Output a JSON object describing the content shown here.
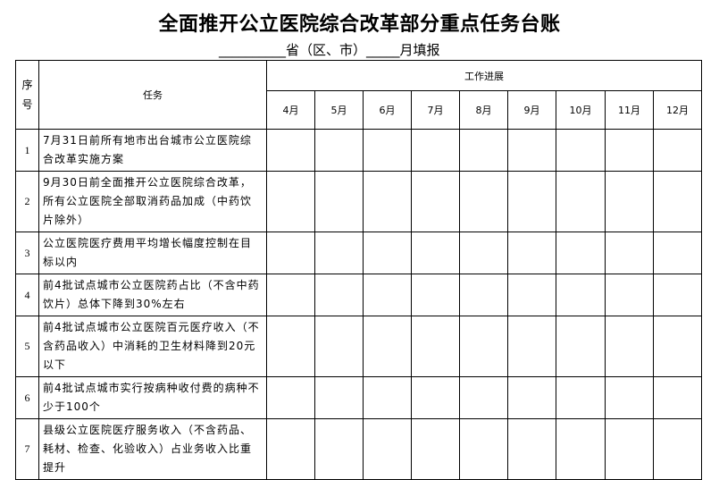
{
  "title": "全面推开公立医院综合改革部分重点任务台账",
  "subtitle": "__________省（区、市）_____月填报",
  "table": {
    "col_seq": "序号",
    "col_task": "任务",
    "col_progress": "工作进展",
    "months": [
      "4月",
      "5月",
      "6月",
      "7月",
      "8月",
      "9月",
      "10月",
      "11月",
      "12月"
    ],
    "rows": [
      {
        "seq": "1",
        "task": "7月31日前所有地市出台城市公立医院综合改革实施方案"
      },
      {
        "seq": "2",
        "task": "9月30日前全面推开公立医院综合改革，所有公立医院全部取消药品加成（中药饮片除外）"
      },
      {
        "seq": "3",
        "task": "公立医院医疗费用平均增长幅度控制在目标以内"
      },
      {
        "seq": "4",
        "task": "前4批试点城市公立医院药占比（不含中药饮片）总体下降到30%左右"
      },
      {
        "seq": "5",
        "task": "前4批试点城市公立医院百元医疗收入（不含药品收入）中消耗的卫生材料降到20元以下"
      },
      {
        "seq": "6",
        "task": "前4批试点城市实行按病种收付费的病种不少于100个"
      },
      {
        "seq": "7",
        "task": "县级公立医院医疗服务收入（不含药品、耗材、检查、化验收入）占业务收入比重提升"
      }
    ]
  }
}
